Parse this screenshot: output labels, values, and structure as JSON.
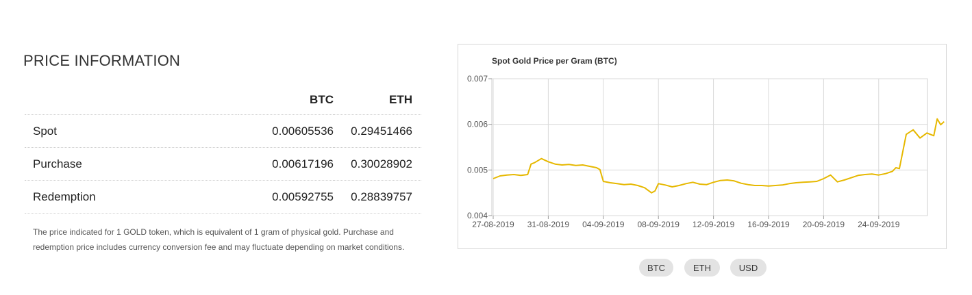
{
  "section_title": "PRICE INFORMATION",
  "table": {
    "headers": [
      "",
      "BTC",
      "ETH"
    ],
    "rows": [
      {
        "label": "Spot",
        "btc": "0.00605536",
        "eth": "0.29451466"
      },
      {
        "label": "Purchase",
        "btc": "0.00617196",
        "eth": "0.30028902"
      },
      {
        "label": "Redemption",
        "btc": "0.00592755",
        "eth": "0.28839757"
      }
    ]
  },
  "footnote": "The price indicated for 1 GOLD token, which is equivalent of 1 gram of physical gold. Purchase and redemption price includes currency conversion fee and may fluctuate depending on market conditions.",
  "chart_data": {
    "type": "line",
    "title": "Spot Gold Price per Gram (BTC)",
    "xlabel": "",
    "ylabel": "",
    "ylim": [
      0.004,
      0.007
    ],
    "yticks": [
      "0.004",
      "0.005",
      "0.006",
      "0.007"
    ],
    "xticks": [
      "27-08-2019",
      "31-08-2019",
      "04-09-2019",
      "08-09-2019",
      "12-09-2019",
      "16-09-2019",
      "20-09-2019",
      "24-09-2019"
    ],
    "grid": true,
    "line_color": "#e6b800",
    "series": [
      {
        "x": [
          "2019-08-27T00:00",
          "2019-08-27T12:00",
          "2019-08-28T00:00",
          "2019-08-28T12:00",
          "2019-08-29T00:00",
          "2019-08-29T12:00",
          "2019-08-29T18:00",
          "2019-08-30T00:00",
          "2019-08-30T12:00",
          "2019-08-31T00:00",
          "2019-08-31T12:00",
          "2019-09-01T00:00",
          "2019-09-01T12:00",
          "2019-09-02T00:00",
          "2019-09-02T12:00",
          "2019-09-03T00:00",
          "2019-09-03T12:00",
          "2019-09-03T18:00",
          "2019-09-04T00:00",
          "2019-09-04T12:00",
          "2019-09-05T00:00",
          "2019-09-05T12:00",
          "2019-09-06T00:00",
          "2019-09-06T12:00",
          "2019-09-07T00:00",
          "2019-09-07T12:00",
          "2019-09-07T18:00",
          "2019-09-08T00:00",
          "2019-09-08T12:00",
          "2019-09-09T00:00",
          "2019-09-09T12:00",
          "2019-09-10T00:00",
          "2019-09-10T12:00",
          "2019-09-11T00:00",
          "2019-09-11T12:00",
          "2019-09-12T00:00",
          "2019-09-12T12:00",
          "2019-09-13T00:00",
          "2019-09-13T12:00",
          "2019-09-14T00:00",
          "2019-09-14T12:00",
          "2019-09-15T00:00",
          "2019-09-15T12:00",
          "2019-09-16T00:00",
          "2019-09-16T12:00",
          "2019-09-17T00:00",
          "2019-09-17T12:00",
          "2019-09-18T00:00",
          "2019-09-18T12:00",
          "2019-09-19T00:00",
          "2019-09-19T12:00",
          "2019-09-20T00:00",
          "2019-09-20T12:00",
          "2019-09-21T00:00",
          "2019-09-21T12:00",
          "2019-09-22T00:00",
          "2019-09-22T12:00",
          "2019-09-23T00:00",
          "2019-09-23T12:00",
          "2019-09-24T00:00",
          "2019-09-24T12:00",
          "2019-09-25T00:00",
          "2019-09-25T06:00",
          "2019-09-25T12:00",
          "2019-09-26T00:00",
          "2019-09-26T12:00",
          "2019-09-27T00:00",
          "2019-09-27T12:00",
          "2019-09-28T00:00",
          "2019-09-28T06:00",
          "2019-09-28T12:00",
          "2019-09-28T18:00"
        ],
        "y": [
          0.00481,
          0.00487,
          0.00489,
          0.0049,
          0.00488,
          0.0049,
          0.00513,
          0.00516,
          0.00525,
          0.00518,
          0.00513,
          0.00511,
          0.00512,
          0.0051,
          0.00511,
          0.00508,
          0.00505,
          0.00501,
          0.00475,
          0.00472,
          0.0047,
          0.00468,
          0.00469,
          0.00466,
          0.00461,
          0.0045,
          0.00454,
          0.0047,
          0.00467,
          0.00463,
          0.00466,
          0.0047,
          0.00473,
          0.00469,
          0.00468,
          0.00473,
          0.00477,
          0.00478,
          0.00476,
          0.00471,
          0.00468,
          0.00466,
          0.00466,
          0.00465,
          0.00466,
          0.00467,
          0.0047,
          0.00472,
          0.00473,
          0.00474,
          0.00475,
          0.00481,
          0.00489,
          0.00474,
          0.00478,
          0.00483,
          0.00488,
          0.0049,
          0.00491,
          0.00489,
          0.00492,
          0.00497,
          0.00505,
          0.00503,
          0.00578,
          0.00588,
          0.0057,
          0.00581,
          0.00575,
          0.00612,
          0.00599,
          0.00606
        ]
      }
    ]
  },
  "currency_buttons": [
    "BTC",
    "ETH",
    "USD"
  ]
}
